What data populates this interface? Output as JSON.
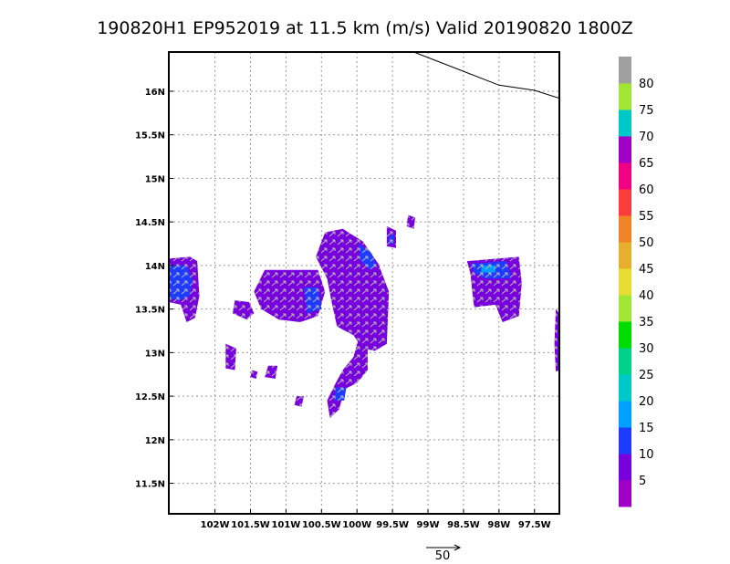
{
  "chart_data": {
    "type": "heatmap",
    "title": "190820H1 EP952019 at 11.5 km (m/s) Valid 20190820 1800Z",
    "xlabel": "",
    "ylabel": "",
    "xlim": [
      -102.65,
      -97.15
    ],
    "ylim": [
      11.15,
      16.45
    ],
    "x_ticks": [
      {
        "value": -102.0,
        "label": "102W"
      },
      {
        "value": -101.5,
        "label": "101.5W"
      },
      {
        "value": -101.0,
        "label": "101W"
      },
      {
        "value": -100.5,
        "label": "100.5W"
      },
      {
        "value": -100.0,
        "label": "100W"
      },
      {
        "value": -99.5,
        "label": "99.5W"
      },
      {
        "value": -99.0,
        "label": "99W"
      },
      {
        "value": -98.5,
        "label": "98.5W"
      },
      {
        "value": -98.0,
        "label": "98W"
      },
      {
        "value": -97.5,
        "label": "97.5W"
      }
    ],
    "y_ticks": [
      {
        "value": 11.5,
        "label": "11.5N"
      },
      {
        "value": 12.0,
        "label": "12N"
      },
      {
        "value": 12.5,
        "label": "12.5N"
      },
      {
        "value": 13.0,
        "label": "13N"
      },
      {
        "value": 13.5,
        "label": "13.5N"
      },
      {
        "value": 14.0,
        "label": "14N"
      },
      {
        "value": 14.5,
        "label": "14.5N"
      },
      {
        "value": 15.0,
        "label": "15N"
      },
      {
        "value": 15.5,
        "label": "15.5N"
      },
      {
        "value": 16.0,
        "label": "16N"
      }
    ],
    "grid": true,
    "colorbar": {
      "levels": [
        0,
        5,
        10,
        15,
        20,
        25,
        30,
        35,
        40,
        45,
        50,
        55,
        60,
        65,
        70,
        75,
        80,
        85
      ],
      "labels": [
        "5",
        "10",
        "15",
        "20",
        "25",
        "30",
        "35",
        "40",
        "45",
        "50",
        "55",
        "60",
        "65",
        "70",
        "75",
        "80"
      ],
      "colors": [
        "#a000c8",
        "#7800dc",
        "#1e3cff",
        "#00a0ff",
        "#00c8c8",
        "#00d28c",
        "#00dc00",
        "#a0e632",
        "#e6dc32",
        "#e6af2d",
        "#f08228",
        "#fa3c3c",
        "#f00082",
        "#a000c8",
        "#00c8c8",
        "#a0e632",
        "#a0a0a0"
      ]
    },
    "coastline": [
      [
        -99.2,
        16.45
      ],
      [
        -98.0,
        16.07
      ],
      [
        -97.5,
        16.01
      ],
      [
        -97.15,
        15.92
      ]
    ],
    "wind_regions": [
      {
        "name": "west-edge-cluster",
        "level": 5,
        "polygon": [
          [
            -102.65,
            14.08
          ],
          [
            -102.35,
            14.1
          ],
          [
            -102.25,
            14.05
          ],
          [
            -102.22,
            13.65
          ],
          [
            -102.28,
            13.4
          ],
          [
            -102.4,
            13.35
          ],
          [
            -102.48,
            13.55
          ],
          [
            -102.65,
            13.58
          ]
        ]
      },
      {
        "name": "west-edge-core",
        "level": 10,
        "polygon": [
          [
            -102.65,
            14.0
          ],
          [
            -102.4,
            14.0
          ],
          [
            -102.32,
            13.85
          ],
          [
            -102.35,
            13.65
          ],
          [
            -102.5,
            13.6
          ],
          [
            -102.65,
            13.62
          ]
        ]
      },
      {
        "name": "west-small-patch",
        "level": 5,
        "polygon": [
          [
            -101.72,
            13.6
          ],
          [
            -101.52,
            13.58
          ],
          [
            -101.45,
            13.45
          ],
          [
            -101.55,
            13.38
          ],
          [
            -101.75,
            13.45
          ]
        ]
      },
      {
        "name": "central-west-block",
        "level": 5,
        "polygon": [
          [
            -101.3,
            13.95
          ],
          [
            -100.55,
            13.95
          ],
          [
            -100.45,
            13.7
          ],
          [
            -100.55,
            13.42
          ],
          [
            -100.8,
            13.35
          ],
          [
            -101.1,
            13.38
          ],
          [
            -101.35,
            13.5
          ],
          [
            -101.45,
            13.7
          ]
        ]
      },
      {
        "name": "central-west-block-blue",
        "level": 10,
        "polygon": [
          [
            -100.75,
            13.75
          ],
          [
            -100.55,
            13.75
          ],
          [
            -100.5,
            13.5
          ],
          [
            -100.7,
            13.45
          ]
        ]
      },
      {
        "name": "main-core",
        "level": 5,
        "polygon": [
          [
            -100.45,
            14.38
          ],
          [
            -100.2,
            14.42
          ],
          [
            -99.92,
            14.28
          ],
          [
            -99.7,
            14.02
          ],
          [
            -99.55,
            13.7
          ],
          [
            -99.58,
            13.1
          ],
          [
            -99.75,
            13.02
          ],
          [
            -99.92,
            13.05
          ],
          [
            -100.05,
            13.2
          ],
          [
            -100.28,
            13.3
          ],
          [
            -100.35,
            13.55
          ],
          [
            -100.42,
            13.85
          ],
          [
            -100.58,
            14.1
          ]
        ]
      },
      {
        "name": "main-core-blue",
        "level": 10,
        "polygon": [
          [
            -99.98,
            14.25
          ],
          [
            -99.8,
            14.15
          ],
          [
            -99.72,
            14.0
          ],
          [
            -99.82,
            13.95
          ],
          [
            -99.95,
            14.05
          ]
        ]
      },
      {
        "name": "south-band",
        "level": 5,
        "polygon": [
          [
            -99.98,
            13.15
          ],
          [
            -99.85,
            13.05
          ],
          [
            -99.85,
            12.8
          ],
          [
            -100.0,
            12.65
          ],
          [
            -100.18,
            12.58
          ],
          [
            -100.25,
            12.35
          ],
          [
            -100.38,
            12.25
          ],
          [
            -100.42,
            12.45
          ],
          [
            -100.3,
            12.65
          ],
          [
            -100.2,
            12.8
          ],
          [
            -100.05,
            12.95
          ]
        ]
      },
      {
        "name": "south-band-blue",
        "level": 10,
        "polygon": [
          [
            -100.3,
            12.6
          ],
          [
            -100.15,
            12.6
          ],
          [
            -100.18,
            12.45
          ],
          [
            -100.32,
            12.45
          ]
        ]
      },
      {
        "name": "southwest-speck-1",
        "level": 5,
        "polygon": [
          [
            -101.85,
            13.1
          ],
          [
            -101.7,
            13.05
          ],
          [
            -101.72,
            12.8
          ],
          [
            -101.85,
            12.82
          ]
        ]
      },
      {
        "name": "southwest-speck-2",
        "level": 5,
        "polygon": [
          [
            -101.25,
            12.85
          ],
          [
            -101.12,
            12.85
          ],
          [
            -101.15,
            12.7
          ],
          [
            -101.3,
            12.72
          ]
        ]
      },
      {
        "name": "southwest-speck-3",
        "level": 5,
        "polygon": [
          [
            -101.48,
            12.8
          ],
          [
            -101.4,
            12.78
          ],
          [
            -101.42,
            12.7
          ],
          [
            -101.5,
            12.72
          ]
        ]
      },
      {
        "name": "southwest-speck-4",
        "level": 5,
        "polygon": [
          [
            -100.85,
            12.5
          ],
          [
            -100.75,
            12.5
          ],
          [
            -100.78,
            12.38
          ],
          [
            -100.88,
            12.4
          ]
        ]
      },
      {
        "name": "north-small-patch",
        "level": 5,
        "polygon": [
          [
            -99.58,
            14.45
          ],
          [
            -99.45,
            14.4
          ],
          [
            -99.45,
            14.2
          ],
          [
            -99.58,
            14.22
          ]
        ]
      },
      {
        "name": "north-small-patch-blue",
        "level": 10,
        "polygon": [
          [
            -99.55,
            14.35
          ],
          [
            -99.48,
            14.35
          ],
          [
            -99.48,
            14.25
          ],
          [
            -99.55,
            14.25
          ]
        ]
      },
      {
        "name": "north-speck",
        "level": 5,
        "polygon": [
          [
            -99.28,
            14.58
          ],
          [
            -99.18,
            14.55
          ],
          [
            -99.2,
            14.42
          ],
          [
            -99.3,
            14.45
          ]
        ]
      },
      {
        "name": "east-cluster",
        "level": 5,
        "polygon": [
          [
            -98.45,
            14.05
          ],
          [
            -97.72,
            14.1
          ],
          [
            -97.68,
            13.8
          ],
          [
            -97.72,
            13.42
          ],
          [
            -97.95,
            13.35
          ],
          [
            -98.05,
            13.55
          ],
          [
            -98.35,
            13.52
          ],
          [
            -98.38,
            13.72
          ],
          [
            -98.4,
            13.9
          ]
        ]
      },
      {
        "name": "east-cluster-blue",
        "level": 10,
        "polygon": [
          [
            -98.4,
            14.02
          ],
          [
            -97.9,
            14.05
          ],
          [
            -97.82,
            13.85
          ],
          [
            -98.2,
            13.85
          ],
          [
            -98.35,
            13.92
          ]
        ]
      },
      {
        "name": "east-cluster-light",
        "level": 15,
        "polygon": [
          [
            -98.25,
            14.0
          ],
          [
            -98.05,
            14.0
          ],
          [
            -98.05,
            13.92
          ],
          [
            -98.25,
            13.92
          ]
        ]
      },
      {
        "name": "far-east-patch",
        "level": 5,
        "polygon": [
          [
            -97.2,
            13.5
          ],
          [
            -97.15,
            13.45
          ],
          [
            -97.15,
            12.8
          ],
          [
            -97.2,
            12.78
          ],
          [
            -97.22,
            13.1
          ]
        ]
      }
    ],
    "reference_vector": {
      "value": 50,
      "label": "50"
    }
  }
}
